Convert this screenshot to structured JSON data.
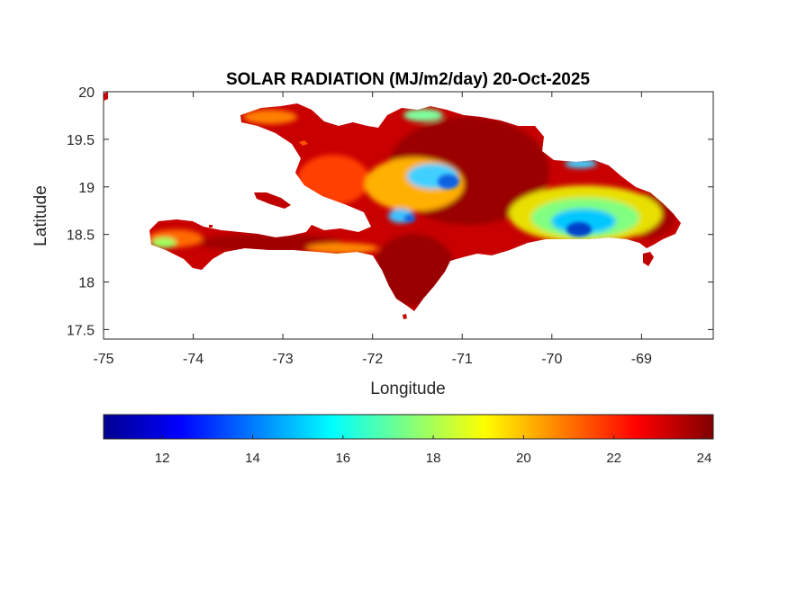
{
  "title": "SOLAR RADIATION (MJ/m2/day) 20-Oct-2025",
  "axes": {
    "xlabel": "Longitude",
    "ylabel": "Latitude",
    "xlim": [
      -75,
      -68.2
    ],
    "ylim": [
      17.4,
      20
    ],
    "xticks": [
      -75,
      -74,
      -73,
      -72,
      -71,
      -70,
      -69
    ],
    "yticks": [
      17.5,
      18,
      18.5,
      19,
      19.5,
      20
    ],
    "xtick_labels": [
      "-75",
      "-74",
      "-73",
      "-72",
      "-71",
      "-70",
      "-69"
    ],
    "ytick_labels": [
      "17.5",
      "18",
      "18.5",
      "19",
      "19.5",
      "20"
    ]
  },
  "colorbar": {
    "range": [
      10.7,
      24.2
    ],
    "ticks": [
      12,
      14,
      16,
      18,
      20,
      22,
      24
    ],
    "tick_labels": [
      "12",
      "14",
      "16",
      "18",
      "20",
      "22",
      "24"
    ],
    "colormap": "jet",
    "placement": "bottom"
  },
  "map": {
    "region": "Hispaniola",
    "variable": "solar radiation",
    "colors": {
      "land_dominant": "#c80000",
      "land_high": "#9a0000",
      "land_mid": "#ff4000",
      "land_low": "#ffb000",
      "cool_low": "#00c8ff",
      "cool_lowest": "#0040c8"
    }
  }
}
